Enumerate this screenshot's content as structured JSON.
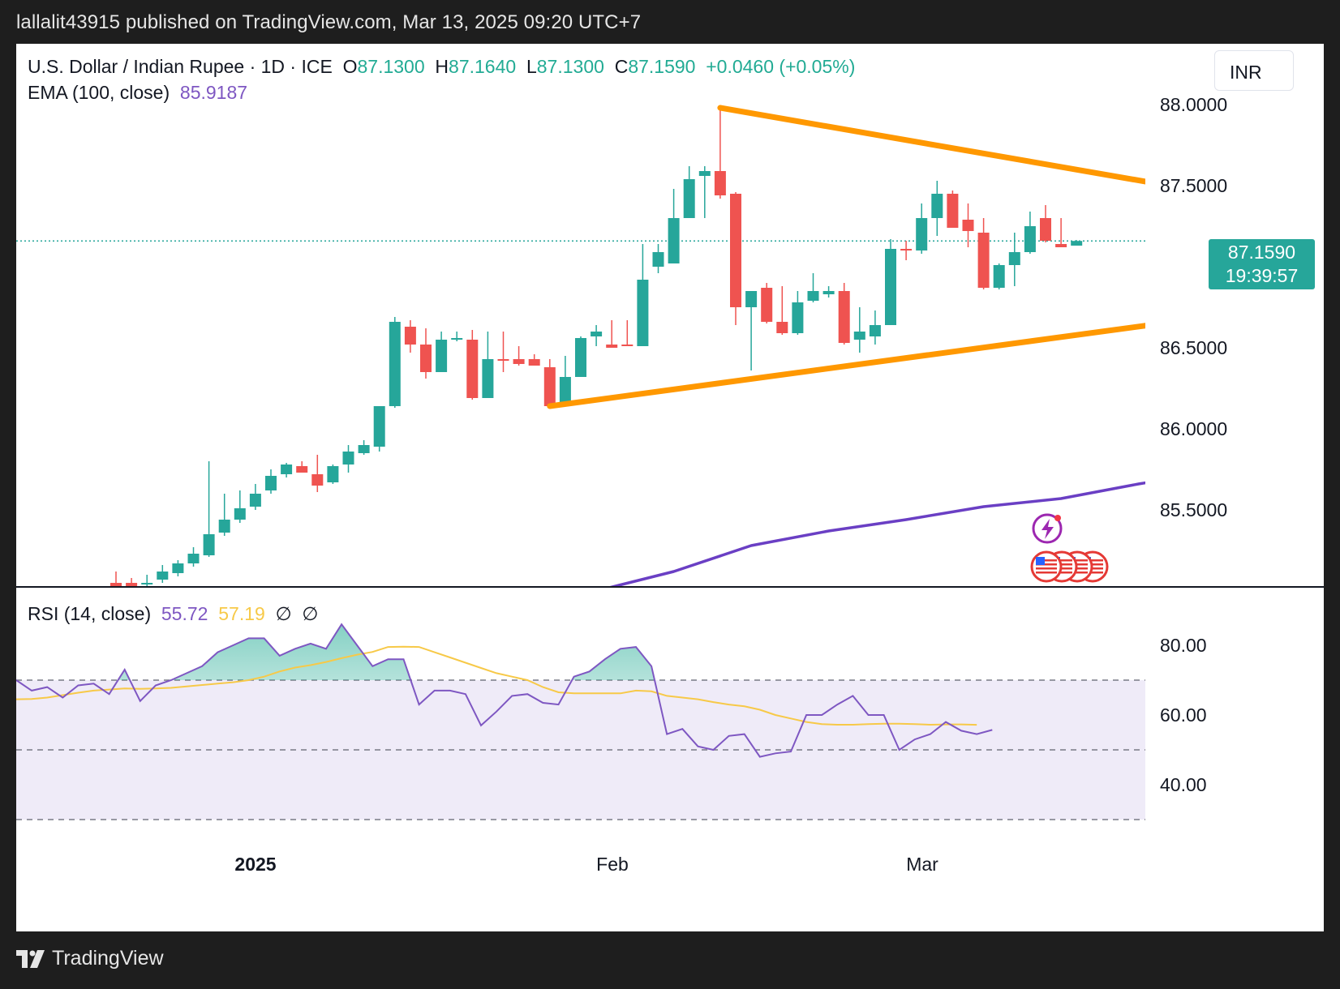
{
  "header": {
    "published": "lallalit43915 published on TradingView.com, Mar 13, 2025 09:20 UTC+7"
  },
  "legend": {
    "symbol": "U.S. Dollar / Indian Rupee · 1D · ICE",
    "o_label": "O",
    "o_value": "87.1300",
    "h_label": "H",
    "h_value": "87.1640",
    "l_label": "L",
    "l_value": "87.1300",
    "c_label": "C",
    "c_value": "87.1590",
    "change": "+0.0460 (+0.05%)",
    "ema_label": "EMA (100, close)",
    "ema_value": "85.9187"
  },
  "currency_button": "INR",
  "price_tag": {
    "price": "87.1590",
    "countdown": "19:39:57"
  },
  "rsi_legend": {
    "label": "RSI (14, close)",
    "rsi_value": "55.72",
    "ma_value": "57.19",
    "extra1": "∅",
    "extra2": "∅"
  },
  "footer": {
    "brand": "TradingView"
  },
  "colors": {
    "up": "#26a69a",
    "down": "#ef5350",
    "trendline": "#ff9800",
    "ema": "#6a3fc4",
    "rsi": "#7e57c2",
    "rsi_ma": "#f7c948"
  },
  "icons": [
    "lightning-event-icon",
    "us-flag-icon"
  ],
  "chart_data": [
    {
      "type": "candlestick",
      "title": "U.S. Dollar / Indian Rupee · 1D · ICE",
      "ylim": [
        85.0,
        88.2
      ],
      "y_ticks": [
        "88.0000",
        "87.5000",
        "86.5000",
        "86.0000",
        "85.5000"
      ],
      "x_ticks": [
        "2025",
        "Feb",
        "Mar"
      ],
      "series": [
        {
          "name": "USDINR",
          "candles": [
            {
              "o": 85.05,
              "h": 85.12,
              "l": 85.0,
              "c": 85.0
            },
            {
              "o": 85.05,
              "h": 85.08,
              "l": 85.0,
              "c": 85.02
            },
            {
              "o": 85.04,
              "h": 85.1,
              "l": 85.0,
              "c": 85.05
            },
            {
              "o": 85.07,
              "h": 85.16,
              "l": 85.05,
              "c": 85.12
            },
            {
              "o": 85.11,
              "h": 85.19,
              "l": 85.09,
              "c": 85.17
            },
            {
              "o": 85.17,
              "h": 85.27,
              "l": 85.15,
              "c": 85.23
            },
            {
              "o": 85.22,
              "h": 85.8,
              "l": 85.21,
              "c": 85.35
            },
            {
              "o": 85.36,
              "h": 85.6,
              "l": 85.34,
              "c": 85.44
            },
            {
              "o": 85.44,
              "h": 85.62,
              "l": 85.42,
              "c": 85.51
            },
            {
              "o": 85.52,
              "h": 85.66,
              "l": 85.5,
              "c": 85.6
            },
            {
              "o": 85.62,
              "h": 85.75,
              "l": 85.6,
              "c": 85.71
            },
            {
              "o": 85.72,
              "h": 85.79,
              "l": 85.7,
              "c": 85.78
            },
            {
              "o": 85.77,
              "h": 85.8,
              "l": 85.74,
              "c": 85.73
            },
            {
              "o": 85.72,
              "h": 85.84,
              "l": 85.61,
              "c": 85.65
            },
            {
              "o": 85.67,
              "h": 85.78,
              "l": 85.66,
              "c": 85.77
            },
            {
              "o": 85.78,
              "h": 85.9,
              "l": 85.73,
              "c": 85.86
            },
            {
              "o": 85.85,
              "h": 85.93,
              "l": 85.84,
              "c": 85.9
            },
            {
              "o": 85.89,
              "h": 86.14,
              "l": 85.86,
              "c": 86.14
            },
            {
              "o": 86.14,
              "h": 86.69,
              "l": 86.13,
              "c": 86.66
            },
            {
              "o": 86.63,
              "h": 86.67,
              "l": 86.47,
              "c": 86.52
            },
            {
              "o": 86.52,
              "h": 86.62,
              "l": 86.31,
              "c": 86.35
            },
            {
              "o": 86.35,
              "h": 86.6,
              "l": 86.35,
              "c": 86.55
            },
            {
              "o": 86.55,
              "h": 86.6,
              "l": 86.54,
              "c": 86.56
            },
            {
              "o": 86.55,
              "h": 86.61,
              "l": 86.18,
              "c": 86.19
            },
            {
              "o": 86.19,
              "h": 86.6,
              "l": 86.19,
              "c": 86.43
            },
            {
              "o": 86.43,
              "h": 86.6,
              "l": 86.35,
              "c": 86.42
            },
            {
              "o": 86.43,
              "h": 86.51,
              "l": 86.39,
              "c": 86.4
            },
            {
              "o": 86.43,
              "h": 86.46,
              "l": 86.39,
              "c": 86.39
            },
            {
              "o": 86.38,
              "h": 86.43,
              "l": 86.14,
              "c": 86.14
            },
            {
              "o": 86.14,
              "h": 86.45,
              "l": 86.14,
              "c": 86.32
            },
            {
              "o": 86.32,
              "h": 86.57,
              "l": 86.32,
              "c": 86.56
            },
            {
              "o": 86.57,
              "h": 86.64,
              "l": 86.51,
              "c": 86.6
            },
            {
              "o": 86.52,
              "h": 86.67,
              "l": 86.51,
              "c": 86.5
            },
            {
              "o": 86.52,
              "h": 86.67,
              "l": 86.51,
              "c": 86.51
            },
            {
              "o": 86.51,
              "h": 87.14,
              "l": 86.51,
              "c": 86.92
            },
            {
              "o": 87.0,
              "h": 87.14,
              "l": 86.96,
              "c": 87.09
            },
            {
              "o": 87.02,
              "h": 87.48,
              "l": 87.02,
              "c": 87.3
            },
            {
              "o": 87.3,
              "h": 87.62,
              "l": 87.3,
              "c": 87.54
            },
            {
              "o": 87.56,
              "h": 87.62,
              "l": 87.3,
              "c": 87.59
            },
            {
              "o": 87.59,
              "h": 87.98,
              "l": 87.42,
              "c": 87.44
            },
            {
              "o": 87.45,
              "h": 87.46,
              "l": 86.64,
              "c": 86.75
            },
            {
              "o": 86.75,
              "h": 86.85,
              "l": 86.36,
              "c": 86.85
            },
            {
              "o": 86.87,
              "h": 86.9,
              "l": 86.65,
              "c": 86.66
            },
            {
              "o": 86.66,
              "h": 86.88,
              "l": 86.58,
              "c": 86.59
            },
            {
              "o": 86.59,
              "h": 86.85,
              "l": 86.58,
              "c": 86.78
            },
            {
              "o": 86.79,
              "h": 86.96,
              "l": 86.78,
              "c": 86.85
            },
            {
              "o": 86.83,
              "h": 86.88,
              "l": 86.81,
              "c": 86.85
            },
            {
              "o": 86.85,
              "h": 86.9,
              "l": 86.52,
              "c": 86.53
            },
            {
              "o": 86.55,
              "h": 86.75,
              "l": 86.47,
              "c": 86.6
            },
            {
              "o": 86.57,
              "h": 86.73,
              "l": 86.52,
              "c": 86.64
            },
            {
              "o": 86.64,
              "h": 87.17,
              "l": 86.64,
              "c": 87.11
            },
            {
              "o": 87.11,
              "h": 87.16,
              "l": 87.04,
              "c": 87.1
            },
            {
              "o": 87.1,
              "h": 87.39,
              "l": 87.08,
              "c": 87.3
            },
            {
              "o": 87.3,
              "h": 87.53,
              "l": 87.19,
              "c": 87.45
            },
            {
              "o": 87.45,
              "h": 87.47,
              "l": 87.24,
              "c": 87.24
            },
            {
              "o": 87.29,
              "h": 87.39,
              "l": 87.12,
              "c": 87.22
            },
            {
              "o": 87.21,
              "h": 87.3,
              "l": 86.86,
              "c": 86.87
            },
            {
              "o": 86.87,
              "h": 87.02,
              "l": 86.86,
              "c": 87.01
            },
            {
              "o": 87.01,
              "h": 87.21,
              "l": 86.88,
              "c": 87.09
            },
            {
              "o": 87.09,
              "h": 87.34,
              "l": 87.08,
              "c": 87.25
            },
            {
              "o": 87.3,
              "h": 87.38,
              "l": 87.15,
              "c": 87.16
            },
            {
              "o": 87.14,
              "h": 87.3,
              "l": 87.12,
              "c": 87.12
            },
            {
              "o": 87.13,
              "h": 87.164,
              "l": 87.13,
              "c": 87.159
            }
          ]
        },
        {
          "name": "EMA (100, close)",
          "points": [
            [
              31,
              85.0
            ],
            [
              36,
              85.12
            ],
            [
              41,
              85.28
            ],
            [
              46,
              85.37
            ],
            [
              51,
              85.44
            ],
            [
              56,
              85.52
            ],
            [
              61,
              85.57
            ],
            [
              66,
              85.66
            ],
            [
              71,
              85.74
            ],
            [
              76,
              85.8
            ],
            [
              80,
              85.86
            ],
            [
              84,
              85.92
            ]
          ]
        }
      ],
      "trendlines": [
        {
          "name": "upper",
          "from": [
            39,
            87.98
          ],
          "to": [
            91.5,
            87.11
          ]
        },
        {
          "name": "lower",
          "from": [
            28,
            86.14
          ],
          "to": [
            91.5,
            86.96
          ]
        }
      ],
      "last_price": 87.159
    },
    {
      "type": "line",
      "title": "RSI (14, close)",
      "ylim": [
        30,
        90
      ],
      "y_ticks": [
        "80.00",
        "60.00",
        "40.00"
      ],
      "bands": [
        70,
        50,
        30
      ],
      "series": [
        {
          "name": "RSI",
          "values": [
            70,
            67,
            68,
            65,
            68.5,
            69,
            66,
            73,
            64,
            68.5,
            70,
            72,
            74,
            78,
            80,
            82,
            82,
            77,
            79,
            80.5,
            79,
            86,
            80,
            74,
            76,
            76,
            63,
            67,
            67,
            66,
            57,
            61,
            65.5,
            66,
            63.5,
            63,
            71,
            72.5,
            76,
            79,
            79.5,
            74,
            54.5,
            56,
            51,
            50,
            54,
            54.5,
            48,
            49,
            49.5,
            60,
            60,
            63,
            65.5,
            60,
            60,
            50,
            53,
            54.5,
            58,
            55.5,
            54.5,
            55.72
          ]
        },
        {
          "name": "RSI MA",
          "values": [
            64.5,
            64.6,
            65,
            65.7,
            66.4,
            67,
            67.3,
            67.6,
            67.5,
            67.6,
            67.8,
            68.2,
            68.6,
            69,
            69.4,
            70,
            71,
            72.5,
            73.6,
            74.3,
            75.2,
            76.3,
            77.3,
            78.1,
            79.5,
            79.6,
            79.5,
            78,
            76.5,
            75,
            73.5,
            72,
            71,
            70,
            68,
            66.5,
            66.2,
            66.2,
            66.2,
            66.2,
            67,
            66.8,
            65.5,
            65,
            64.5,
            63.7,
            63,
            62.5,
            61.5,
            60,
            59,
            58,
            57.4,
            57.2,
            57.2,
            57.4,
            57.5,
            57.5,
            57.4,
            57.2,
            57.3,
            57.3,
            57.19
          ]
        }
      ]
    }
  ]
}
